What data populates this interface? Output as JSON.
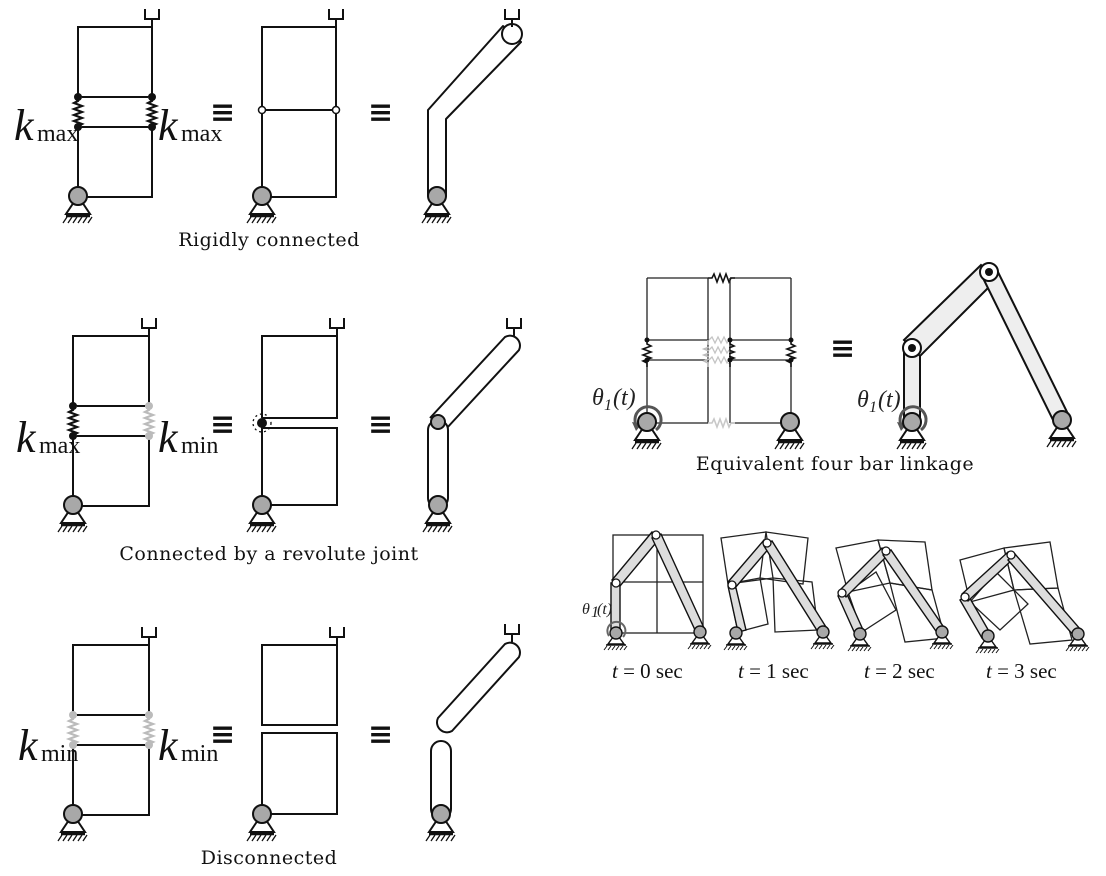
{
  "captions": {
    "rigid": "Rigidly connected",
    "revolute": "Connected by a revolute joint",
    "disconnected": "Disconnected",
    "fourbar": "Equivalent four bar linkage"
  },
  "symbols": {
    "k": "k",
    "sub_max": "max",
    "sub_min": "min",
    "equiv": "≡",
    "theta": "θ",
    "theta_sub": "1",
    "theta_arg": "(t)"
  },
  "time_labels": [
    {
      "t": "t",
      "rest": " = 0 sec"
    },
    {
      "t": "t",
      "rest": " = 1 sec"
    },
    {
      "t": "t",
      "rest": " = 2 sec"
    },
    {
      "t": "t",
      "rest": " = 3 sec"
    }
  ],
  "colors": {
    "stiff_spring": "#111111",
    "soft_spring": "#b8b8b8",
    "pivot_fill": "#a8a8a8",
    "link_fill": "#e2e2e2"
  }
}
